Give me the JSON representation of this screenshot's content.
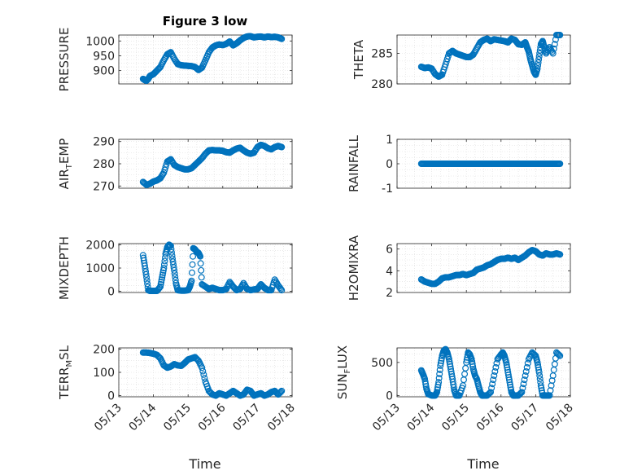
{
  "title": "Figure 3 low",
  "xlabel": "Time",
  "colors": {
    "marker": "#0072BD",
    "axis": "#262626",
    "grid": "#dcdcdc"
  },
  "chart_data": [
    {
      "id": "pressure",
      "type": "scatter",
      "title": "Figure 3 low",
      "ylabel_main": "PRESSURE",
      "ylabel_sub": "",
      "ylabel_tail": "",
      "ylim": [
        855,
        1020
      ],
      "yticks": [
        900,
        950,
        1000
      ],
      "ytick_labels": [
        "900",
        "950",
        "1000"
      ],
      "grid": true,
      "xlim": [
        0,
        5
      ],
      "xticks": [
        0,
        1,
        2,
        3,
        4,
        5
      ],
      "x": [
        0.7,
        0.75,
        0.8,
        0.85,
        0.9,
        1.0,
        1.1,
        1.2,
        1.3,
        1.4,
        1.5,
        1.6,
        1.7,
        1.8,
        1.9,
        2.0,
        2.1,
        2.2,
        2.3,
        2.4,
        2.5,
        2.6,
        2.7,
        2.8,
        2.9,
        3.0,
        3.1,
        3.2,
        3.3,
        3.4,
        3.5,
        3.6,
        3.7,
        3.8,
        3.9,
        4.0,
        4.1,
        4.2,
        4.3,
        4.4,
        4.5,
        4.6,
        4.7
      ],
      "y": [
        872,
        868,
        866,
        872,
        882,
        888,
        900,
        912,
        935,
        955,
        962,
        940,
        922,
        918,
        917,
        916,
        915,
        912,
        902,
        910,
        935,
        962,
        978,
        985,
        988,
        986,
        990,
        998,
        985,
        992,
        1002,
        1010,
        1015,
        1016,
        1012,
        1014,
        1015,
        1012,
        1015,
        1013,
        1014,
        1012,
        1007
      ]
    },
    {
      "id": "theta",
      "type": "scatter",
      "ylabel_main": "THETA",
      "ylabel_sub": "",
      "ylabel_tail": "",
      "ylim": [
        280,
        288
      ],
      "yticks": [
        280,
        285
      ],
      "ytick_labels": [
        "280",
        "285"
      ],
      "grid": true,
      "xlim": [
        0,
        5
      ],
      "xticks": [
        0,
        1,
        2,
        3,
        4,
        5
      ],
      "x": [
        0.7,
        0.8,
        0.9,
        1.0,
        1.1,
        1.2,
        1.3,
        1.4,
        1.5,
        1.6,
        1.7,
        1.8,
        1.9,
        2.0,
        2.1,
        2.2,
        2.3,
        2.4,
        2.5,
        2.6,
        2.7,
        2.8,
        2.9,
        3.0,
        3.1,
        3.2,
        3.3,
        3.4,
        3.5,
        3.6,
        3.7,
        3.75,
        3.8,
        3.85,
        3.9,
        3.95,
        4.0,
        4.05,
        4.1,
        4.15,
        4.2,
        4.25,
        4.3,
        4.4,
        4.5,
        4.6,
        4.7
      ],
      "x2": [],
      "y": [
        282.8,
        282.6,
        282.7,
        282.5,
        281.6,
        281.2,
        281.5,
        283.2,
        285,
        285.4,
        285.0,
        284.8,
        284.6,
        284.4,
        284.4,
        284.8,
        285.8,
        286.8,
        287.2,
        287.4,
        287.0,
        287.3,
        287.2,
        287.1,
        287.0,
        286.8,
        287.4,
        287.2,
        286.5,
        286.4,
        286.8,
        286.0,
        285.3,
        284.0,
        283.0,
        282.0,
        281.5,
        282.5,
        284.5,
        286.5,
        287.0,
        286.0,
        285.0,
        286.0,
        285.0,
        288.0,
        288.0
      ]
    },
    {
      "id": "airtemp",
      "type": "scatter",
      "ylabel_main": "AIR",
      "ylabel_sub": "T",
      "ylabel_tail": "EMP",
      "ylim": [
        269,
        291
      ],
      "yticks": [
        270,
        280,
        290
      ],
      "ytick_labels": [
        "270",
        "280",
        "290"
      ],
      "grid": true,
      "xlim": [
        0,
        5
      ],
      "xticks": [
        0,
        1,
        2,
        3,
        4,
        5
      ],
      "x": [
        0.7,
        0.8,
        0.9,
        1.0,
        1.1,
        1.2,
        1.3,
        1.4,
        1.5,
        1.6,
        1.7,
        1.8,
        1.9,
        2.0,
        2.1,
        2.2,
        2.3,
        2.4,
        2.5,
        2.6,
        2.7,
        2.8,
        2.9,
        3.0,
        3.1,
        3.2,
        3.3,
        3.4,
        3.5,
        3.6,
        3.7,
        3.8,
        3.9,
        4.0,
        4.1,
        4.2,
        4.3,
        4.4,
        4.5,
        4.6,
        4.7
      ],
      "y": [
        271.8,
        270.5,
        271.0,
        272.0,
        272.5,
        273.5,
        276.0,
        281.0,
        282.0,
        279.5,
        278.5,
        278.0,
        277.5,
        277.5,
        278.0,
        279.5,
        281.0,
        282.5,
        284.5,
        286.0,
        286.2,
        286.0,
        286.0,
        285.8,
        285.2,
        285.0,
        286.0,
        286.8,
        287.2,
        286.0,
        285.0,
        284.5,
        285.0,
        287.5,
        288.5,
        288.0,
        287.0,
        286.5,
        287.5,
        288.0,
        287.5
      ]
    },
    {
      "id": "rainfall",
      "type": "scatter",
      "ylabel_main": "RAINFALL",
      "ylabel_sub": "",
      "ylabel_tail": "",
      "ylim": [
        -1,
        1
      ],
      "yticks": [
        -1,
        0,
        1
      ],
      "ytick_labels": [
        "-1",
        "0",
        "1"
      ],
      "grid": true,
      "xlim": [
        0,
        5
      ],
      "xticks": [
        0,
        1,
        2,
        3,
        4,
        5
      ],
      "x": [
        0.7,
        0.8,
        0.9,
        1.0,
        1.1,
        1.2,
        1.3,
        1.4,
        1.5,
        1.6,
        1.7,
        1.8,
        1.9,
        2.0,
        2.1,
        2.2,
        2.3,
        2.4,
        2.5,
        2.6,
        2.7,
        2.8,
        2.9,
        3.0,
        3.1,
        3.2,
        3.3,
        3.4,
        3.5,
        3.6,
        3.7,
        3.8,
        3.9,
        4.0,
        4.1,
        4.2,
        4.3,
        4.4,
        4.5,
        4.6,
        4.7
      ],
      "y": [
        0,
        0,
        0,
        0,
        0,
        0,
        0,
        0,
        0,
        0,
        0,
        0,
        0,
        0,
        0,
        0,
        0,
        0,
        0,
        0,
        0,
        0,
        0,
        0,
        0,
        0,
        0,
        0,
        0,
        0,
        0,
        0,
        0,
        0,
        0,
        0,
        0,
        0,
        0,
        0,
        0
      ]
    },
    {
      "id": "mixdepth",
      "type": "scatter",
      "ylabel_main": "MIXDEPTH",
      "ylabel_sub": "",
      "ylabel_tail": "",
      "ylim": [
        -50,
        2050
      ],
      "yticks": [
        0,
        1000,
        2000
      ],
      "ytick_labels": [
        "0",
        "1000",
        "2000"
      ],
      "grid": true,
      "xlim": [
        0,
        5
      ],
      "xticks": [
        0,
        1,
        2,
        3,
        4,
        5
      ],
      "x": [
        0.7,
        0.75,
        0.8,
        0.85,
        0.9,
        1.0,
        1.1,
        1.2,
        1.25,
        1.3,
        1.35,
        1.4,
        1.45,
        1.5,
        1.55,
        1.6,
        1.65,
        1.7,
        1.8,
        1.9,
        2.0,
        2.05,
        2.1,
        2.15,
        2.2,
        2.25,
        2.3,
        2.35,
        2.4,
        2.5,
        2.6,
        2.7,
        2.8,
        2.9,
        3.0,
        3.1,
        3.2,
        3.3,
        3.4,
        3.5,
        3.6,
        3.7,
        3.8,
        3.9,
        4.0,
        4.1,
        4.2,
        4.3,
        4.4,
        4.5,
        4.6,
        4.7
      ],
      "y": [
        1550,
        1100,
        600,
        50,
        20,
        20,
        20,
        200,
        600,
        1000,
        1600,
        1900,
        2000,
        1950,
        1400,
        900,
        350,
        50,
        30,
        30,
        50,
        200,
        450,
        1850,
        1800,
        1700,
        1650,
        1500,
        300,
        200,
        100,
        150,
        100,
        50,
        50,
        100,
        400,
        200,
        50,
        100,
        350,
        100,
        50,
        80,
        100,
        300,
        150,
        50,
        50,
        500,
        250,
        50
      ]
    },
    {
      "id": "h2omixra",
      "type": "scatter",
      "ylabel_main": "H2OMIXRA",
      "ylabel_sub": "",
      "ylabel_tail": "",
      "ylim": [
        2,
        6.5
      ],
      "yticks": [
        2,
        4,
        6
      ],
      "ytick_labels": [
        "2",
        "4",
        "6"
      ],
      "grid": true,
      "xlim": [
        0,
        5
      ],
      "xticks": [
        0,
        1,
        2,
        3,
        4,
        5
      ],
      "x": [
        0.7,
        0.8,
        0.9,
        1.0,
        1.1,
        1.2,
        1.3,
        1.4,
        1.5,
        1.6,
        1.7,
        1.8,
        1.9,
        2.0,
        2.1,
        2.2,
        2.3,
        2.4,
        2.5,
        2.6,
        2.7,
        2.8,
        2.9,
        3.0,
        3.1,
        3.2,
        3.3,
        3.4,
        3.5,
        3.6,
        3.7,
        3.8,
        3.9,
        4.0,
        4.1,
        4.2,
        4.3,
        4.4,
        4.5,
        4.6,
        4.7
      ],
      "y": [
        3.2,
        3.0,
        2.9,
        2.8,
        2.8,
        3.0,
        3.3,
        3.4,
        3.4,
        3.5,
        3.6,
        3.6,
        3.7,
        3.6,
        3.7,
        3.8,
        4.1,
        4.2,
        4.3,
        4.5,
        4.6,
        4.8,
        5.0,
        5.1,
        5.1,
        5.2,
        5.1,
        5.2,
        5.0,
        5.2,
        5.4,
        5.7,
        5.9,
        5.8,
        5.5,
        5.4,
        5.6,
        5.5,
        5.5,
        5.6,
        5.5
      ]
    },
    {
      "id": "terrmsl",
      "type": "scatter",
      "ylabel_main": "TERR",
      "ylabel_sub": "M",
      "ylabel_tail": "SL",
      "ylim": [
        -5,
        205
      ],
      "yticks": [
        0,
        100,
        200
      ],
      "ytick_labels": [
        "0",
        "100",
        "200"
      ],
      "grid": true,
      "xlim": [
        0,
        5
      ],
      "xticks": [
        0,
        1,
        2,
        3,
        4,
        5
      ],
      "x": [
        0.7,
        0.8,
        0.9,
        1.0,
        1.1,
        1.2,
        1.3,
        1.4,
        1.5,
        1.6,
        1.7,
        1.8,
        1.9,
        2.0,
        2.1,
        2.2,
        2.3,
        2.4,
        2.5,
        2.6,
        2.7,
        2.8,
        2.9,
        3.0,
        3.1,
        3.2,
        3.3,
        3.4,
        3.5,
        3.6,
        3.7,
        3.8,
        3.9,
        4.0,
        4.1,
        4.2,
        4.3,
        4.4,
        4.5,
        4.6,
        4.7
      ],
      "y": [
        185,
        185,
        183,
        180,
        175,
        160,
        130,
        120,
        125,
        135,
        130,
        128,
        140,
        155,
        160,
        165,
        150,
        120,
        60,
        20,
        5,
        0,
        10,
        5,
        0,
        10,
        20,
        10,
        0,
        5,
        25,
        20,
        0,
        5,
        10,
        0,
        5,
        15,
        20,
        5,
        20
      ]
    },
    {
      "id": "sunflux",
      "type": "scatter",
      "ylabel_main": "SUN",
      "ylabel_sub": "F",
      "ylabel_tail": "LUX",
      "ylim": [
        -20,
        720
      ],
      "yticks": [
        0,
        500
      ],
      "ytick_labels": [
        "0",
        "500"
      ],
      "grid": true,
      "xlim": [
        0,
        5
      ],
      "xticks": [
        0,
        1,
        2,
        3,
        4,
        5
      ],
      "xtick_labels": [
        "05/13",
        "05/14",
        "05/15",
        "05/16",
        "05/17",
        "05/18"
      ],
      "x": [
        0.7,
        0.75,
        0.8,
        0.85,
        0.9,
        1.0,
        1.1,
        1.15,
        1.2,
        1.25,
        1.3,
        1.35,
        1.4,
        1.45,
        1.5,
        1.55,
        1.6,
        1.65,
        1.7,
        1.8,
        1.9,
        2.0,
        2.05,
        2.1,
        2.15,
        2.2,
        2.25,
        2.3,
        2.35,
        2.4,
        2.45,
        2.5,
        2.6,
        2.7,
        2.8,
        2.9,
        3.0,
        3.05,
        3.1,
        3.15,
        3.2,
        3.25,
        3.3,
        3.35,
        3.4,
        3.5,
        3.6,
        3.7,
        3.8,
        3.9,
        4.0,
        4.05,
        4.1,
        4.15,
        4.2,
        4.3,
        4.4,
        4.5,
        4.6,
        4.7
      ],
      "y": [
        380,
        320,
        250,
        100,
        20,
        0,
        0,
        50,
        200,
        450,
        600,
        680,
        700,
        650,
        550,
        400,
        250,
        80,
        0,
        0,
        150,
        500,
        650,
        620,
        550,
        400,
        300,
        250,
        150,
        50,
        0,
        0,
        0,
        50,
        300,
        550,
        620,
        650,
        600,
        500,
        350,
        200,
        50,
        0,
        0,
        0,
        50,
        300,
        550,
        650,
        600,
        500,
        350,
        150,
        0,
        0,
        0,
        300,
        650,
        600
      ]
    }
  ]
}
